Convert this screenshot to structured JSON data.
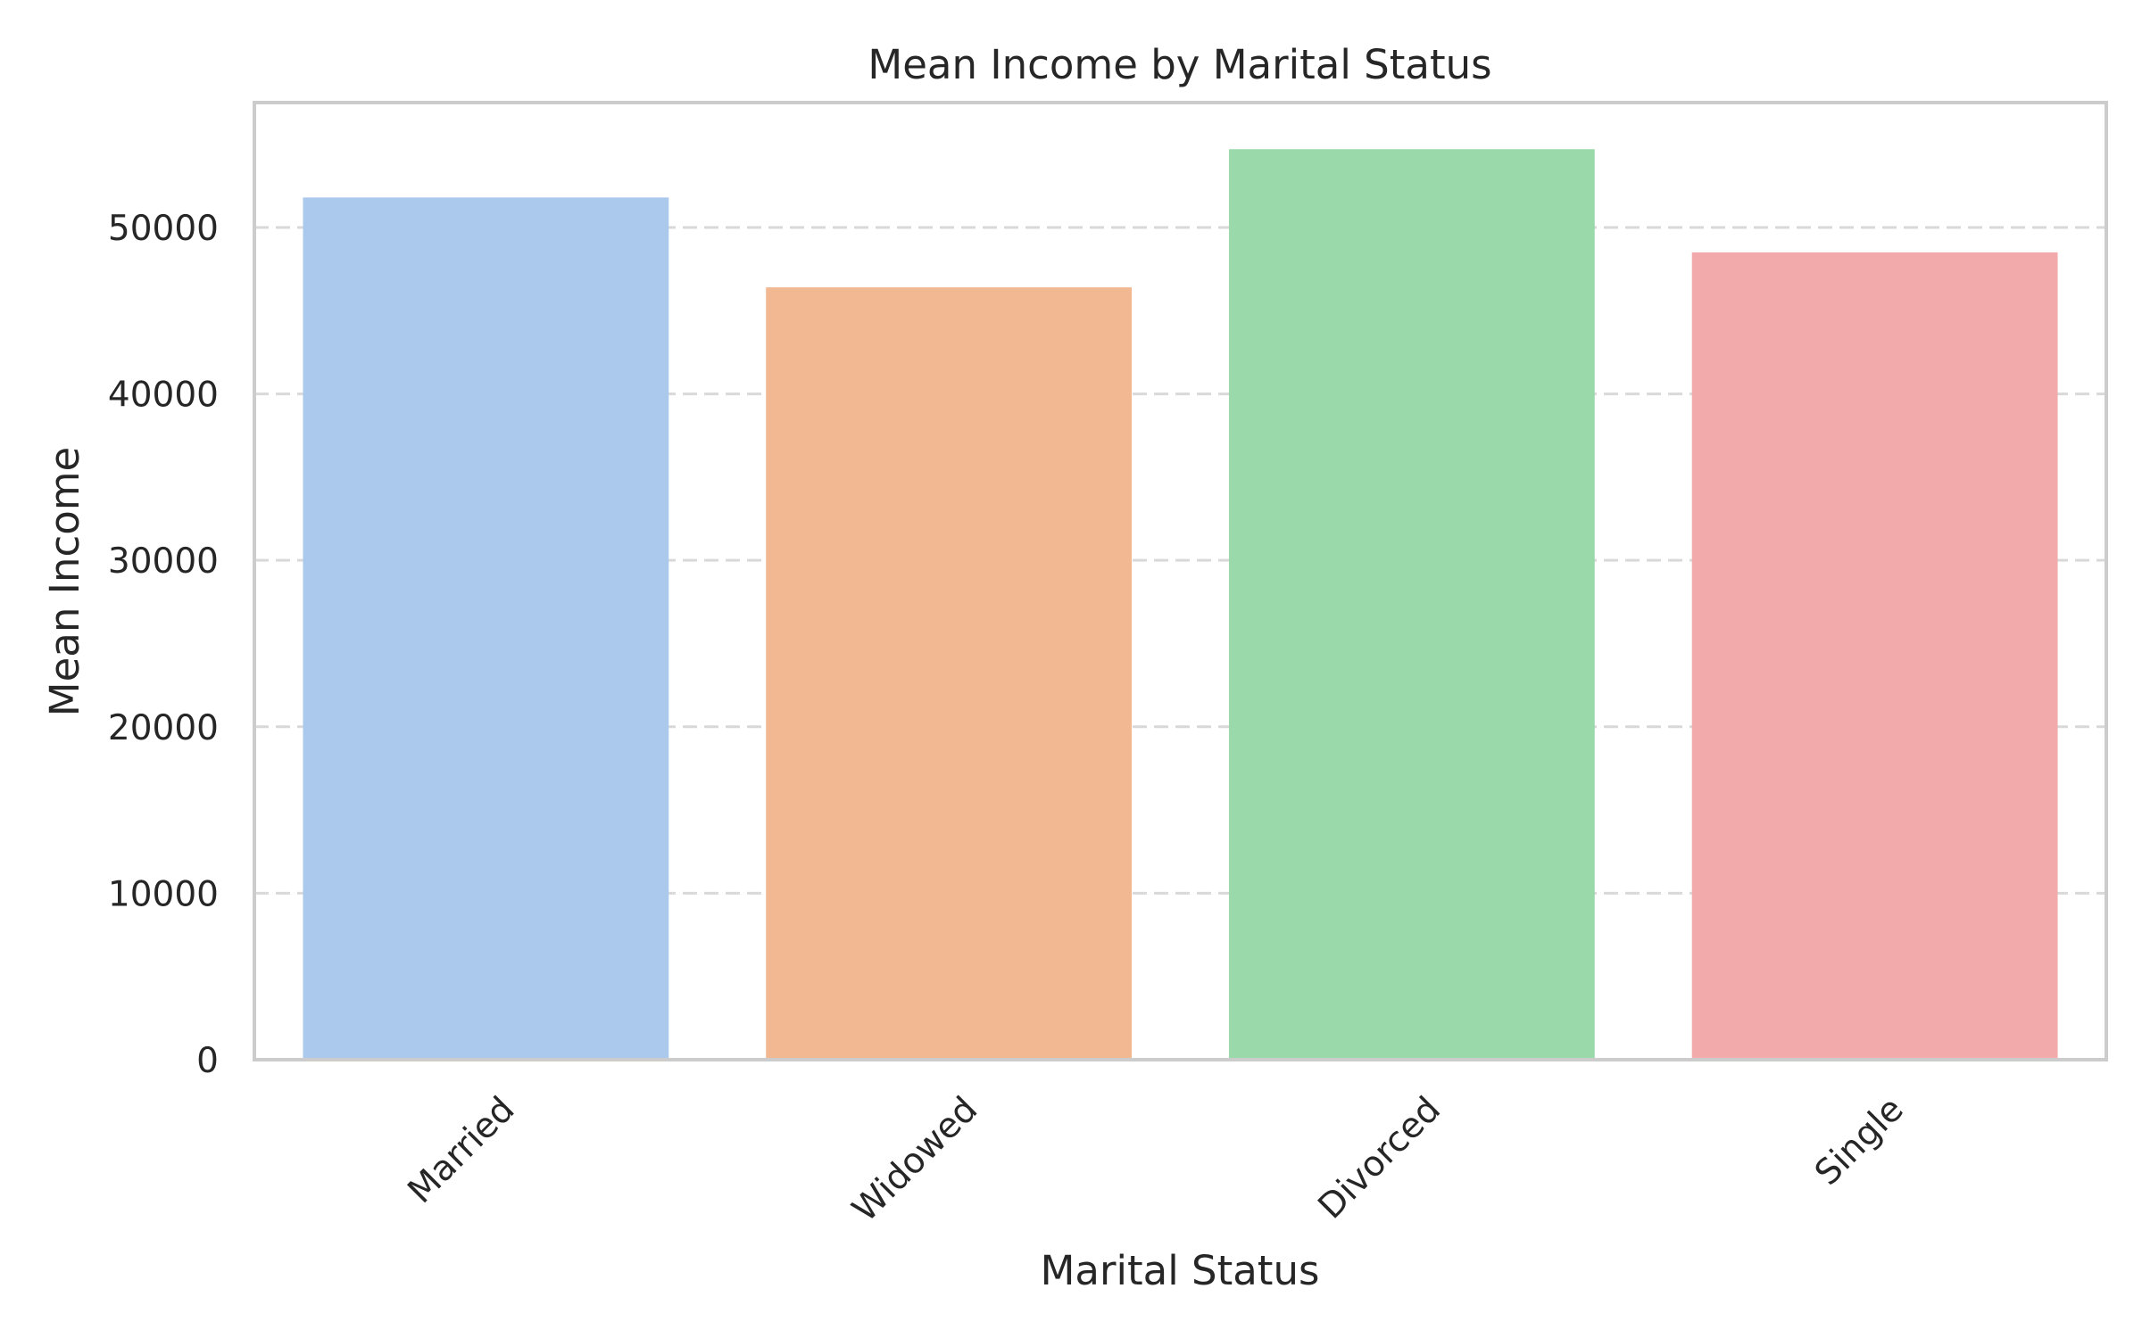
{
  "chart_data": {
    "type": "bar",
    "title": "Mean Income by Marital Status",
    "xlabel": "Marital Status",
    "ylabel": "Mean Income",
    "categories": [
      "Married",
      "Widowed",
      "Divorced",
      "Single"
    ],
    "values": [
      51800,
      46400,
      54700,
      48500
    ],
    "colors": [
      "#abc9ed",
      "#f1b892",
      "#9ad9a9",
      "#f2aaaa"
    ],
    "ylim": [
      0,
      57500
    ],
    "yticks": [
      0,
      10000,
      20000,
      30000,
      40000,
      50000
    ],
    "ytick_labels": [
      "0",
      "10000",
      "20000",
      "30000",
      "40000",
      "50000"
    ],
    "grid": "y-dashed",
    "legend": "none"
  }
}
